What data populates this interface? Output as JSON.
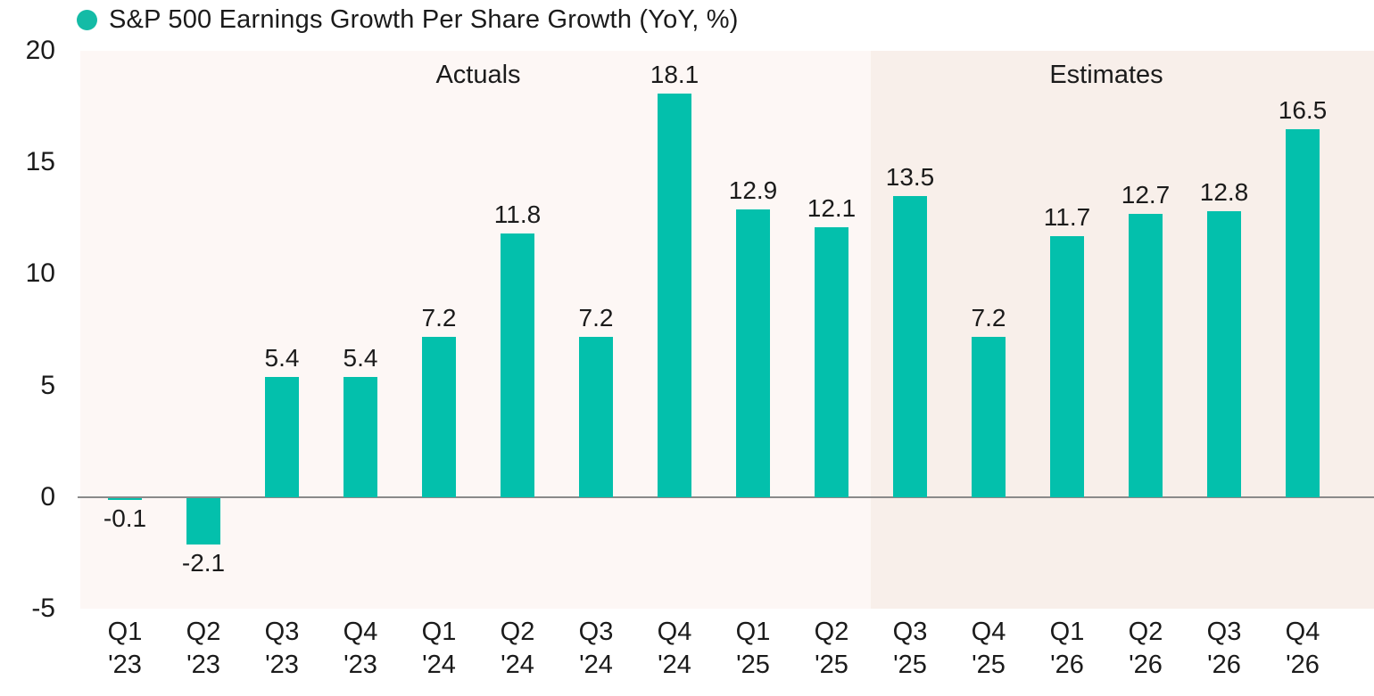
{
  "legend": {
    "label": "S&P 500 Earnings Growth Per Share Growth (YoY, %)"
  },
  "colors": {
    "bar": "#03c0ac",
    "legend_dot": "#14bba6",
    "actuals_bg": "#fdf7f5",
    "estimates_bg": "#f8efea",
    "zero_line": "#8a8a8a",
    "text": "#1b1b1b"
  },
  "chart_data": {
    "type": "bar",
    "title": "S&P 500 Earnings Growth Per Share Growth (YoY, %)",
    "categories": [
      "Q1 '23",
      "Q2 '23",
      "Q3 '23",
      "Q4 '23",
      "Q1 '24",
      "Q2 '24",
      "Q3 '24",
      "Q4 '24",
      "Q1 '25",
      "Q2 '25",
      "Q3 '25",
      "Q4 '25",
      "Q1 '26",
      "Q2 '26",
      "Q3 '26",
      "Q4 '26"
    ],
    "values": [
      -0.1,
      -2.1,
      5.4,
      5.4,
      7.2,
      11.8,
      7.2,
      18.1,
      12.9,
      12.1,
      13.5,
      7.2,
      11.7,
      12.7,
      12.8,
      16.5
    ],
    "xlabel": "",
    "ylabel": "",
    "ylim": [
      -5,
      20
    ],
    "yticks": [
      20,
      15,
      10,
      5,
      0,
      -5
    ],
    "grid": false,
    "legend_position": "top-left",
    "regions": [
      {
        "label": "Actuals",
        "count": 10,
        "shaded": false
      },
      {
        "label": "Estimates",
        "count": 6,
        "shaded": true
      }
    ]
  }
}
